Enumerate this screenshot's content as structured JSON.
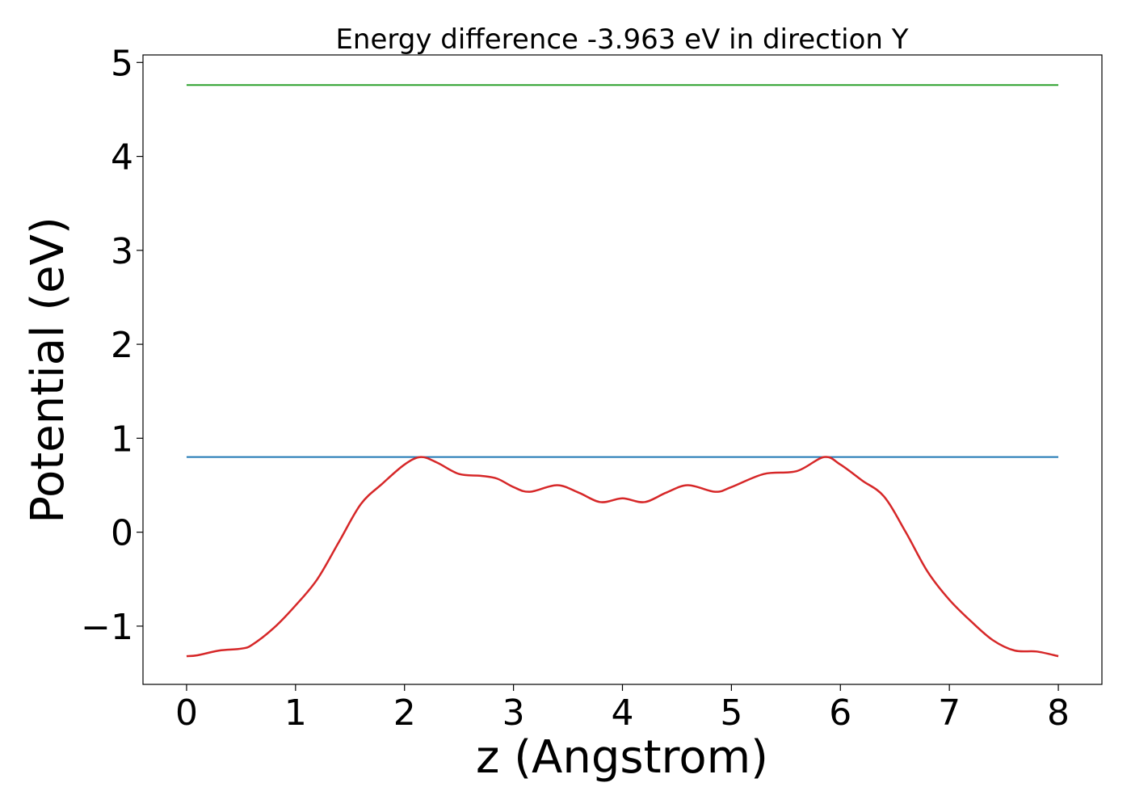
{
  "chart_data": {
    "type": "line",
    "title": "Energy difference -3.963 eV in direction Y",
    "xlabel": "z (Angstrom)",
    "ylabel": "Potential (eV)",
    "xlim": [
      -0.4,
      8.4
    ],
    "ylim": [
      -1.62,
      5.08
    ],
    "x_ticks": [
      0,
      1,
      2,
      3,
      4,
      5,
      6,
      7,
      8
    ],
    "x_tick_labels": [
      "0",
      "1",
      "2",
      "3",
      "4",
      "5",
      "6",
      "7",
      "8"
    ],
    "y_ticks": [
      -1,
      0,
      1,
      2,
      3,
      4,
      5
    ],
    "y_tick_labels": [
      "−1",
      "0",
      "1",
      "2",
      "3",
      "4",
      "5"
    ],
    "grid": false,
    "series": [
      {
        "color": "#2ca02c",
        "x": [
          0,
          8
        ],
        "y": [
          4.76,
          4.76
        ]
      },
      {
        "color": "#1f77b4",
        "x": [
          0,
          8
        ],
        "y": [
          0.8,
          0.8
        ]
      },
      {
        "color": "#d62728",
        "x": [
          0,
          0.1,
          0.3,
          0.5,
          0.6,
          0.8,
          1.0,
          1.2,
          1.4,
          1.6,
          1.8,
          2.0,
          2.15,
          2.3,
          2.5,
          2.7,
          2.85,
          3.0,
          3.15,
          3.4,
          3.6,
          3.8,
          4.0,
          4.2,
          4.4,
          4.6,
          4.85,
          5.0,
          5.3,
          5.6,
          5.85,
          6.0,
          6.2,
          6.4,
          6.6,
          6.8,
          7.0,
          7.2,
          7.4,
          7.6,
          7.8,
          8.0
        ],
        "y": [
          -1.32,
          -1.31,
          -1.26,
          -1.24,
          -1.2,
          -1.02,
          -0.78,
          -0.5,
          -0.1,
          0.3,
          0.52,
          0.72,
          0.8,
          0.74,
          0.62,
          0.6,
          0.57,
          0.48,
          0.43,
          0.5,
          0.42,
          0.32,
          0.36,
          0.32,
          0.42,
          0.5,
          0.43,
          0.48,
          0.62,
          0.65,
          0.8,
          0.72,
          0.55,
          0.38,
          0.0,
          -0.42,
          -0.72,
          -0.95,
          -1.15,
          -1.26,
          -1.27,
          -1.32
        ]
      }
    ]
  }
}
